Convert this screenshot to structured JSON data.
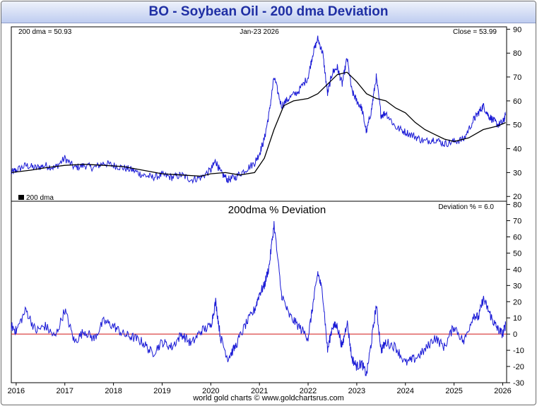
{
  "title": "BO  -  Soybean Oil - 200 dma Deviation",
  "footer": "world gold charts © www.goldchartsrus.com",
  "colors": {
    "price": "#1a1ad6",
    "dma": "#000000",
    "zero_line": "#d01818",
    "title": "#1f2fa4"
  },
  "chart_data": [
    {
      "type": "line",
      "title": "",
      "header_left": "200 dma =  50.93",
      "header_center": "Jan-23  2026",
      "header_right": "Close = 53.99",
      "legend": "200 dma",
      "legend_placement": "bottom-left",
      "ylim": [
        18,
        91
      ],
      "yticks": [
        "20",
        "30",
        "40",
        "50",
        "60",
        "70",
        "80",
        "90"
      ],
      "x_start": 2015.9,
      "x_end": 2026.08,
      "series": [
        {
          "name": "Soybean Oil price",
          "x": [
            2015.9,
            2016.0,
            2016.2,
            2016.4,
            2016.6,
            2016.8,
            2017.0,
            2017.2,
            2017.4,
            2017.6,
            2017.8,
            2018.0,
            2018.2,
            2018.4,
            2018.6,
            2018.8,
            2019.0,
            2019.2,
            2019.4,
            2019.6,
            2019.8,
            2020.0,
            2020.1,
            2020.2,
            2020.35,
            2020.5,
            2020.7,
            2020.9,
            2021.0,
            2021.1,
            2021.2,
            2021.3,
            2021.45,
            2021.6,
            2021.8,
            2022.0,
            2022.1,
            2022.2,
            2022.3,
            2022.4,
            2022.5,
            2022.6,
            2022.7,
            2022.8,
            2022.9,
            2023.0,
            2023.1,
            2023.2,
            2023.3,
            2023.4,
            2023.5,
            2023.6,
            2023.8,
            2024.0,
            2024.2,
            2024.4,
            2024.6,
            2024.8,
            2025.0,
            2025.2,
            2025.4,
            2025.5,
            2025.6,
            2025.7,
            2025.8,
            2025.9,
            2026.0,
            2026.06
          ],
          "y": [
            30,
            31,
            33,
            32,
            33,
            32,
            36,
            32,
            33,
            32,
            34,
            33,
            32,
            31,
            29,
            28,
            29,
            28,
            29,
            27,
            28,
            31,
            35,
            30,
            27,
            28,
            31,
            34,
            38,
            44,
            55,
            70,
            58,
            61,
            64,
            70,
            80,
            86,
            80,
            63,
            72,
            74,
            67,
            78,
            64,
            60,
            57,
            47,
            56,
            70,
            54,
            55,
            49,
            47,
            45,
            43,
            44,
            42,
            43,
            44,
            52,
            55,
            58,
            54,
            52,
            50,
            51,
            54
          ]
        },
        {
          "name": "200 dma",
          "x": [
            2015.9,
            2016.3,
            2016.6,
            2017.0,
            2017.4,
            2017.8,
            2018.2,
            2018.6,
            2019.0,
            2019.4,
            2019.8,
            2020.0,
            2020.3,
            2020.6,
            2020.9,
            2021.1,
            2021.3,
            2021.5,
            2021.7,
            2022.0,
            2022.2,
            2022.4,
            2022.6,
            2022.8,
            2023.0,
            2023.2,
            2023.4,
            2023.6,
            2023.8,
            2024.0,
            2024.2,
            2024.4,
            2024.6,
            2024.8,
            2025.0,
            2025.3,
            2025.6,
            2025.9,
            2026.06
          ],
          "y": [
            30,
            31,
            32,
            33,
            33.5,
            33,
            32.5,
            31,
            29.5,
            29,
            28.5,
            29.5,
            30,
            29,
            30,
            36,
            48,
            58,
            60,
            61,
            63,
            67,
            71,
            72,
            68,
            63,
            61,
            60,
            57,
            55,
            51,
            48,
            46,
            44,
            43,
            44.5,
            48,
            49.5,
            50.93
          ]
        }
      ]
    },
    {
      "type": "line",
      "title": "200dma  %  Deviation",
      "header_right": "Deviation % = 6.0",
      "ylim": [
        -30,
        82
      ],
      "yticks": [
        "80",
        "70",
        "60",
        "50",
        "40",
        "30",
        "20",
        "10",
        "0",
        "-10",
        "-20",
        "-30"
      ],
      "x_start": 2015.9,
      "x_end": 2026.08,
      "xticks": [
        "2016",
        "2017",
        "2018",
        "2019",
        "2020",
        "2021",
        "2022",
        "2023",
        "2024",
        "2025",
        "2026"
      ],
      "reference_line": 0,
      "series": [
        {
          "name": "Deviation %",
          "x": [
            2015.9,
            2016.0,
            2016.2,
            2016.4,
            2016.6,
            2016.8,
            2017.0,
            2017.2,
            2017.4,
            2017.6,
            2017.8,
            2018.0,
            2018.2,
            2018.4,
            2018.6,
            2018.8,
            2019.0,
            2019.2,
            2019.4,
            2019.6,
            2019.8,
            2020.0,
            2020.1,
            2020.2,
            2020.35,
            2020.5,
            2020.7,
            2020.9,
            2021.0,
            2021.1,
            2021.2,
            2021.3,
            2021.45,
            2021.6,
            2021.8,
            2022.0,
            2022.1,
            2022.2,
            2022.3,
            2022.4,
            2022.5,
            2022.6,
            2022.7,
            2022.8,
            2022.9,
            2023.0,
            2023.1,
            2023.2,
            2023.3,
            2023.4,
            2023.5,
            2023.6,
            2023.8,
            2024.0,
            2024.2,
            2024.4,
            2024.6,
            2024.8,
            2025.0,
            2025.2,
            2025.4,
            2025.5,
            2025.6,
            2025.7,
            2025.8,
            2025.9,
            2026.0,
            2026.06
          ],
          "y": [
            5,
            2,
            15,
            2,
            5,
            -2,
            15,
            -5,
            2,
            -3,
            8,
            5,
            0,
            -2,
            -5,
            -12,
            -5,
            -8,
            0,
            -6,
            2,
            5,
            20,
            -2,
            -15,
            -8,
            5,
            15,
            25,
            30,
            42,
            68,
            25,
            12,
            5,
            -2,
            18,
            38,
            25,
            -10,
            5,
            5,
            -8,
            8,
            -15,
            -20,
            -18,
            -25,
            -5,
            18,
            -10,
            -5,
            -8,
            -18,
            -15,
            -10,
            -2,
            -8,
            5,
            -5,
            12,
            10,
            22,
            15,
            8,
            3,
            0,
            6
          ]
        }
      ]
    }
  ]
}
